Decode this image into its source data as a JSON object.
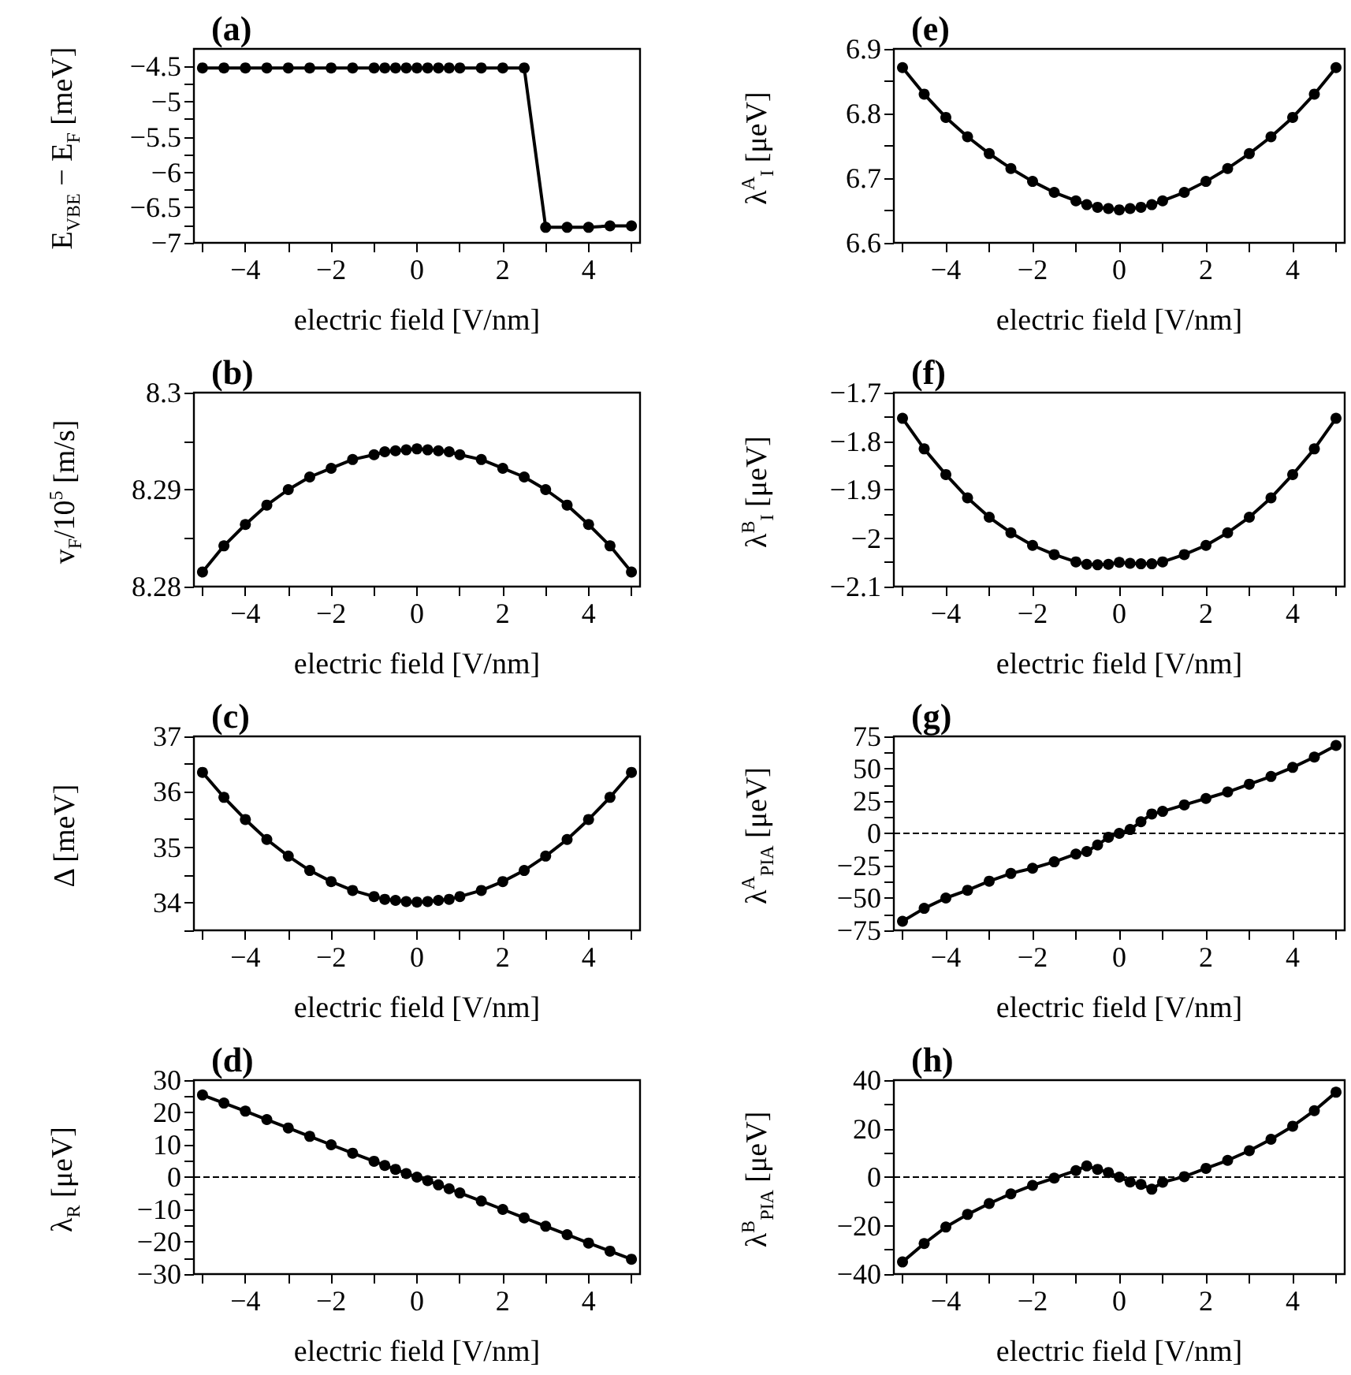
{
  "chart_data": [
    {
      "type": "line",
      "title": "(a)",
      "xlabel": "electric field [V/nm]",
      "ylabel": "E$_{VBE}$ − E$_{F}$ [meV]",
      "marker": "circle",
      "line_style": "solid",
      "color": "#000000",
      "x": [
        -5,
        -4.5,
        -4,
        -3.5,
        -3,
        -2.5,
        -2,
        -1.5,
        -1,
        -0.75,
        -0.5,
        -0.25,
        0,
        0.25,
        0.5,
        0.75,
        1,
        1.5,
        2,
        2.5,
        3,
        3.5,
        4,
        4.5,
        5
      ],
      "values": [
        -4.52,
        -4.52,
        -4.52,
        -4.52,
        -4.52,
        -4.52,
        -4.52,
        -4.52,
        -4.52,
        -4.52,
        -4.52,
        -4.52,
        -4.52,
        -4.52,
        -4.52,
        -4.52,
        -4.52,
        -4.52,
        -4.52,
        -4.52,
        -6.78,
        -6.78,
        -6.78,
        -6.76,
        -6.76
      ],
      "xlim": [
        -5.2,
        5.2
      ],
      "xticks": [
        {
          "value": -5,
          "label": null
        },
        -4,
        {
          "value": -3,
          "label": null
        },
        -2,
        {
          "value": -1,
          "label": null
        },
        0,
        {
          "value": 1,
          "label": null
        },
        2,
        {
          "value": 3,
          "label": null
        },
        4,
        {
          "value": 5,
          "label": null
        }
      ],
      "ylim": [
        -7,
        -4.25
      ],
      "yticks": [
        -7,
        {
          "value": -6.75,
          "label": null
        },
        -6.5,
        {
          "value": -6.25,
          "label": null
        },
        -6,
        {
          "value": -5.75,
          "label": null
        },
        -5.5,
        {
          "value": -5.25,
          "label": null
        },
        -5,
        {
          "value": -4.75,
          "label": null
        },
        -4.5
      ]
    },
    {
      "type": "line",
      "title": "(b)",
      "xlabel": "electric field [V/nm]",
      "ylabel": "v$_{F}$/10$^{5}$ [m/s]",
      "marker": "circle",
      "line_style": "solid",
      "color": "#000000",
      "x": [
        -5,
        -4.5,
        -4,
        -3.5,
        -3,
        -2.5,
        -2,
        -1.5,
        -1,
        -0.75,
        -0.5,
        -0.25,
        0,
        0.25,
        0.5,
        0.75,
        1,
        1.5,
        2,
        2.5,
        3,
        3.5,
        4,
        4.5,
        5
      ],
      "values": [
        8.2815,
        8.2842,
        8.2864,
        8.2884,
        8.29,
        8.2913,
        8.2922,
        8.2931,
        8.2936,
        8.2939,
        8.294,
        8.2941,
        8.2942,
        8.2941,
        8.294,
        8.2939,
        8.2936,
        8.2931,
        8.2922,
        8.2913,
        8.29,
        8.2884,
        8.2864,
        8.2842,
        8.2815
      ],
      "xlim": [
        -5.2,
        5.2
      ],
      "xticks": [
        {
          "value": -5,
          "label": null
        },
        -4,
        {
          "value": -3,
          "label": null
        },
        -2,
        {
          "value": -1,
          "label": null
        },
        0,
        {
          "value": 1,
          "label": null
        },
        2,
        {
          "value": 3,
          "label": null
        },
        4,
        {
          "value": 5,
          "label": null
        }
      ],
      "ylim": [
        8.28,
        8.3
      ],
      "yticks": [
        8.28,
        {
          "value": 8.285,
          "label": null
        },
        8.29,
        {
          "value": 8.295,
          "label": null
        },
        8.3
      ]
    },
    {
      "type": "line",
      "title": "(c)",
      "xlabel": "electric field [V/nm]",
      "ylabel": "Δ [meV]",
      "marker": "circle",
      "line_style": "solid",
      "color": "#000000",
      "x": [
        -5,
        -4.5,
        -4,
        -3.5,
        -3,
        -2.5,
        -2,
        -1.5,
        -1,
        -0.75,
        -0.5,
        -0.25,
        0,
        0.25,
        0.5,
        0.75,
        1,
        1.5,
        2,
        2.5,
        3,
        3.5,
        4,
        4.5,
        5
      ],
      "values": [
        36.35,
        35.9,
        35.5,
        35.14,
        34.84,
        34.58,
        34.38,
        34.22,
        34.11,
        34.06,
        34.04,
        34.02,
        34.01,
        34.02,
        34.04,
        34.06,
        34.11,
        34.22,
        34.38,
        34.58,
        34.84,
        35.14,
        35.5,
        35.9,
        36.35
      ],
      "xlim": [
        -5.2,
        5.2
      ],
      "xticks": [
        {
          "value": -5,
          "label": null
        },
        -4,
        {
          "value": -3,
          "label": null
        },
        -2,
        {
          "value": -1,
          "label": null
        },
        0,
        {
          "value": 1,
          "label": null
        },
        2,
        {
          "value": 3,
          "label": null
        },
        4,
        {
          "value": 5,
          "label": null
        }
      ],
      "ylim": [
        33.5,
        37
      ],
      "yticks": [
        {
          "value": 33.5,
          "label": null
        },
        34,
        {
          "value": 34.5,
          "label": null
        },
        35,
        {
          "value": 35.5,
          "label": null
        },
        36,
        {
          "value": 36.5,
          "label": null
        },
        37
      ]
    },
    {
      "type": "line",
      "title": "(d)",
      "xlabel": "electric field [V/nm]",
      "ylabel": "λ$_{R}$  [μeV]",
      "marker": "circle",
      "line_style": "solid",
      "color": "#000000",
      "x": [
        -5,
        -4.5,
        -4,
        -3.5,
        -3,
        -2.5,
        -2,
        -1.5,
        -1,
        -0.75,
        -0.5,
        -0.25,
        0,
        0.25,
        0.5,
        0.75,
        1,
        1.5,
        2,
        2.5,
        3,
        3.5,
        4,
        4.5,
        5
      ],
      "values": [
        25.4,
        22.9,
        20.4,
        17.8,
        15.2,
        12.6,
        10,
        7.4,
        4.9,
        3.6,
        2.4,
        1.1,
        0,
        -1.1,
        -2.4,
        -3.6,
        -4.9,
        -7.4,
        -10,
        -12.6,
        -15.2,
        -17.8,
        -20.4,
        -22.9,
        -25.4
      ],
      "xlim": [
        -5.2,
        5.2
      ],
      "xticks": [
        {
          "value": -5,
          "label": null
        },
        -4,
        {
          "value": -3,
          "label": null
        },
        -2,
        {
          "value": -1,
          "label": null
        },
        0,
        {
          "value": 1,
          "label": null
        },
        2,
        {
          "value": 3,
          "label": null
        },
        4,
        {
          "value": 5,
          "label": null
        }
      ],
      "ylim": [
        -30,
        30
      ],
      "yticks": [
        -30,
        {
          "value": -25,
          "label": null
        },
        -20,
        {
          "value": -15,
          "label": null
        },
        -10,
        {
          "value": -5,
          "label": null
        },
        0,
        {
          "value": 5,
          "label": null
        },
        10,
        {
          "value": 15,
          "label": null
        },
        20,
        {
          "value": 25,
          "label": null
        },
        30
      ],
      "ref_lines": [
        {
          "axis": "y",
          "value": 0,
          "line_style": "dashed"
        }
      ]
    },
    {
      "type": "line",
      "title": "(e)",
      "xlabel": "electric field [V/nm]",
      "ylabel": "λ$^{A}$$_{I}$  [μeV]",
      "marker": "circle",
      "line_style": "solid",
      "color": "#000000",
      "x": [
        -5,
        -4.5,
        -4,
        -3.5,
        -3,
        -2.5,
        -2,
        -1.5,
        -1,
        -0.75,
        -0.5,
        -0.25,
        0,
        0.25,
        0.5,
        0.75,
        1,
        1.5,
        2,
        2.5,
        3,
        3.5,
        4,
        4.5,
        5
      ],
      "values": [
        6.871,
        6.83,
        6.794,
        6.764,
        6.738,
        6.715,
        6.695,
        6.678,
        6.665,
        6.659,
        6.655,
        6.653,
        6.651,
        6.653,
        6.655,
        6.659,
        6.665,
        6.678,
        6.695,
        6.715,
        6.738,
        6.764,
        6.794,
        6.83,
        6.871
      ],
      "xlim": [
        -5.2,
        5.2
      ],
      "xticks": [
        {
          "value": -5,
          "label": null
        },
        -4,
        {
          "value": -3,
          "label": null
        },
        -2,
        {
          "value": -1,
          "label": null
        },
        0,
        {
          "value": 1,
          "label": null
        },
        2,
        {
          "value": 3,
          "label": null
        },
        4,
        {
          "value": 5,
          "label": null
        }
      ],
      "ylim": [
        6.6,
        6.9
      ],
      "yticks": [
        6.6,
        {
          "value": 6.65,
          "label": null
        },
        6.7,
        {
          "value": 6.75,
          "label": null
        },
        6.8,
        {
          "value": 6.85,
          "label": null
        },
        6.9
      ]
    },
    {
      "type": "line",
      "title": "(f)",
      "xlabel": "electric field [V/nm]",
      "ylabel": "λ$^{B}$$_{I}$  [μeV]",
      "marker": "circle",
      "line_style": "solid",
      "color": "#000000",
      "x": [
        -5,
        -4.5,
        -4,
        -3.5,
        -3,
        -2.5,
        -2,
        -1.5,
        -1,
        -0.75,
        -0.5,
        -0.25,
        0,
        0.25,
        0.5,
        0.75,
        1,
        1.5,
        2,
        2.5,
        3,
        3.5,
        4,
        4.5,
        5
      ],
      "values": [
        -1.753,
        -1.816,
        -1.869,
        -1.917,
        -1.957,
        -1.989,
        -2.015,
        -2.034,
        -2.049,
        -2.054,
        -2.055,
        -2.054,
        -2.05,
        -2.052,
        -2.053,
        -2.053,
        -2.049,
        -2.034,
        -2.015,
        -1.989,
        -1.957,
        -1.917,
        -1.869,
        -1.816,
        -1.753
      ],
      "xlim": [
        -5.2,
        5.2
      ],
      "xticks": [
        {
          "value": -5,
          "label": null
        },
        -4,
        {
          "value": -3,
          "label": null
        },
        -2,
        {
          "value": -1,
          "label": null
        },
        0,
        {
          "value": 1,
          "label": null
        },
        2,
        {
          "value": 3,
          "label": null
        },
        4,
        {
          "value": 5,
          "label": null
        }
      ],
      "ylim": [
        -2.1,
        -1.7
      ],
      "yticks": [
        -2.1,
        {
          "value": -2.05,
          "label": null
        },
        -2,
        {
          "value": -1.95,
          "label": null
        },
        -1.9,
        {
          "value": -1.85,
          "label": null
        },
        -1.8,
        {
          "value": -1.75,
          "label": null
        },
        -1.7
      ]
    },
    {
      "type": "line",
      "title": "(g)",
      "xlabel": "electric field [V/nm]",
      "ylabel": "λ$^{A}$$_{PIA}$ [μeV]",
      "marker": "circle",
      "line_style": "solid",
      "color": "#000000",
      "x": [
        -5,
        -4.5,
        -4,
        -3.5,
        -3,
        -2.5,
        -2,
        -1.5,
        -1,
        -0.75,
        -0.5,
        -0.25,
        0,
        0.25,
        0.5,
        0.75,
        1,
        1.5,
        2,
        2.5,
        3,
        3.5,
        4,
        4.5,
        5
      ],
      "values": [
        -68,
        -58,
        -50,
        -44,
        -37,
        -31,
        -27,
        -22,
        -16,
        -14,
        -9,
        -3,
        0,
        3,
        9,
        15,
        17,
        22,
        27,
        32,
        38,
        44,
        51,
        59,
        68
      ],
      "xlim": [
        -5.2,
        5.2
      ],
      "xticks": [
        {
          "value": -5,
          "label": null
        },
        -4,
        {
          "value": -3,
          "label": null
        },
        -2,
        {
          "value": -1,
          "label": null
        },
        0,
        {
          "value": 1,
          "label": null
        },
        2,
        {
          "value": 3,
          "label": null
        },
        4,
        {
          "value": 5,
          "label": null
        }
      ],
      "ylim": [
        -75,
        75
      ],
      "yticks": [
        -75,
        {
          "value": -62.5,
          "label": null
        },
        -50,
        {
          "value": -37.5,
          "label": null
        },
        -25,
        {
          "value": -12.5,
          "label": null
        },
        0,
        {
          "value": 12.5,
          "label": null
        },
        25,
        {
          "value": 37.5,
          "label": null
        },
        50,
        {
          "value": 62.5,
          "label": null
        },
        75
      ],
      "ref_lines": [
        {
          "axis": "y",
          "value": 0,
          "line_style": "dashed"
        }
      ]
    },
    {
      "type": "line",
      "title": "(h)",
      "xlabel": "electric field [V/nm]",
      "ylabel": "λ$^{B}$$_{PIA}$ [μeV]",
      "marker": "circle",
      "line_style": "solid",
      "color": "#000000",
      "x": [
        -5,
        -4.5,
        -4,
        -3.5,
        -3,
        -2.5,
        -2,
        -1.5,
        -1,
        -0.75,
        -0.5,
        -0.25,
        0,
        0.25,
        0.5,
        0.75,
        1,
        1.5,
        2,
        2.5,
        3,
        3.5,
        4,
        4.5,
        5
      ],
      "values": [
        -35,
        -27.4,
        -20.6,
        -15.4,
        -10.9,
        -6.9,
        -3.4,
        -0.4,
        2.7,
        4.6,
        3.2,
        1.9,
        0,
        -2,
        -3,
        -5,
        -2.1,
        0.2,
        3.6,
        6.9,
        10.9,
        15.6,
        21,
        27.4,
        35
      ],
      "xlim": [
        -5.2,
        5.2
      ],
      "xticks": [
        {
          "value": -5,
          "label": null
        },
        -4,
        {
          "value": -3,
          "label": null
        },
        -2,
        {
          "value": -1,
          "label": null
        },
        0,
        {
          "value": 1,
          "label": null
        },
        2,
        {
          "value": 3,
          "label": null
        },
        4,
        {
          "value": 5,
          "label": null
        }
      ],
      "ylim": [
        -40,
        40
      ],
      "yticks": [
        -40,
        {
          "value": -30,
          "label": null
        },
        -20,
        {
          "value": -10,
          "label": null
        },
        0,
        {
          "value": 10,
          "label": null
        },
        20,
        {
          "value": 30,
          "label": null
        },
        40
      ],
      "ref_lines": [
        {
          "axis": "y",
          "value": 0,
          "line_style": "dashed"
        }
      ]
    }
  ]
}
